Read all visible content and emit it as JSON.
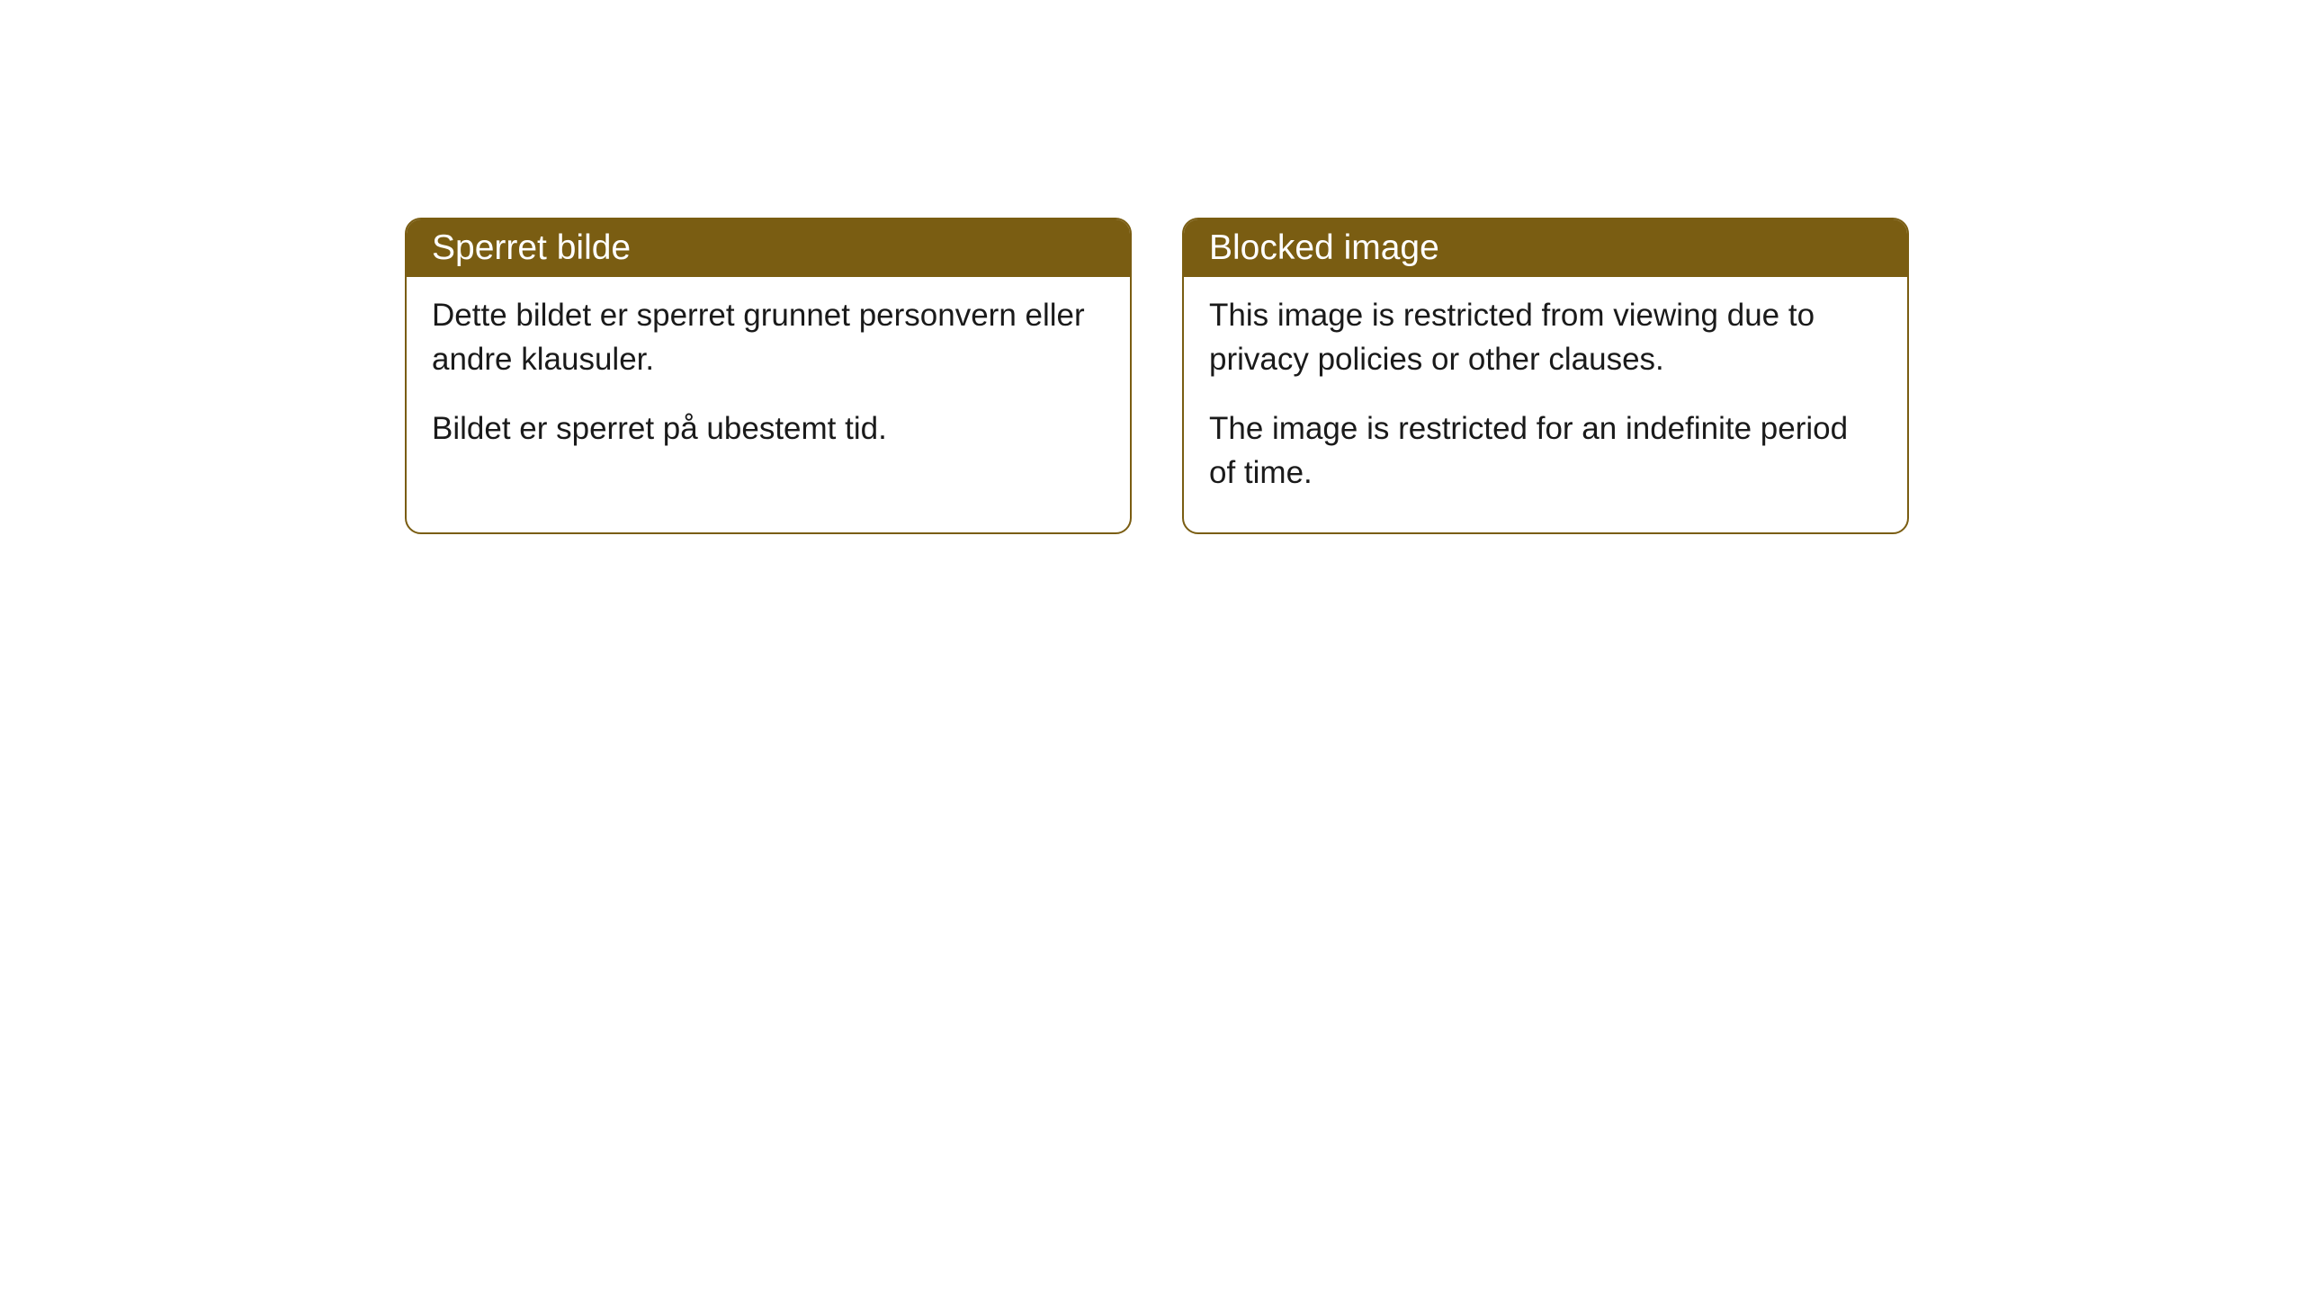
{
  "cards": [
    {
      "title": "Sperret bilde",
      "paragraph1": "Dette bildet er sperret grunnet personvern eller andre klausuler.",
      "paragraph2": "Bildet er sperret på ubestemt tid."
    },
    {
      "title": "Blocked image",
      "paragraph1": "This image is restricted from viewing due to privacy policies or other clauses.",
      "paragraph2": "The image is restricted for an indefinite period of time."
    }
  ],
  "style": {
    "header_bg": "#7a5d12",
    "header_color": "#ffffff",
    "border_color": "#7a5d12",
    "body_bg": "#ffffff",
    "body_text_color": "#1a1a1a",
    "border_radius": 18,
    "header_fontsize": 39,
    "body_fontsize": 35
  }
}
